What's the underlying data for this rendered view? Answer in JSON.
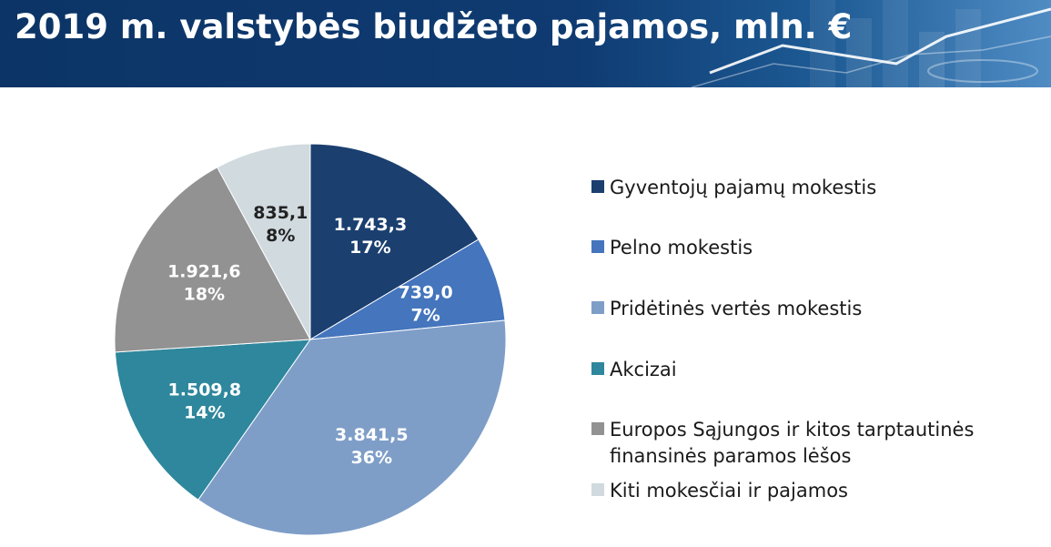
{
  "title": "2019 m. valstybės biudžeto pajamos, mln. €",
  "colors": {
    "gyventoju": "#1b3f6f",
    "pelno": "#4475bd",
    "pvm": "#7e9ec8",
    "akcizai": "#2e879c",
    "es": "#929292",
    "kiti": "#d0dadf"
  },
  "chart_data": {
    "type": "pie",
    "start_angle_deg": 0,
    "direction": "clockwise",
    "legend_position": "right",
    "slices": [
      {
        "name": "Gyventojų pajamų mokestis",
        "value": 1743.3,
        "value_label": "1.743,3",
        "percent_label": "17%",
        "color": "#1b3f6f",
        "label_color": "#ffffff"
      },
      {
        "name": "Pelno mokestis",
        "value": 739.0,
        "value_label": "739,0",
        "percent_label": "7%",
        "color": "#4475bd",
        "label_color": "#ffffff"
      },
      {
        "name": "Pridėtinės vertės mokestis",
        "value": 3841.5,
        "value_label": "3.841,5",
        "percent_label": "36%",
        "color": "#7e9ec8",
        "label_color": "#ffffff"
      },
      {
        "name": "Akcizai",
        "value": 1509.8,
        "value_label": "1.509,8",
        "percent_label": "14%",
        "color": "#2e879c",
        "label_color": "#ffffff"
      },
      {
        "name": "Europos Sąjungos ir kitos tarptautinės\nfinansinės paramos lėšos",
        "value": 1921.6,
        "value_label": "1.921,6",
        "percent_label": "18%",
        "color": "#929292",
        "label_color": "#ffffff"
      },
      {
        "name": "Kiti mokesčiai ir pajamos",
        "value": 835.1,
        "value_label": "835,1",
        "percent_label": "8%",
        "color": "#d0dadf",
        "label_color": "#222222"
      }
    ]
  }
}
